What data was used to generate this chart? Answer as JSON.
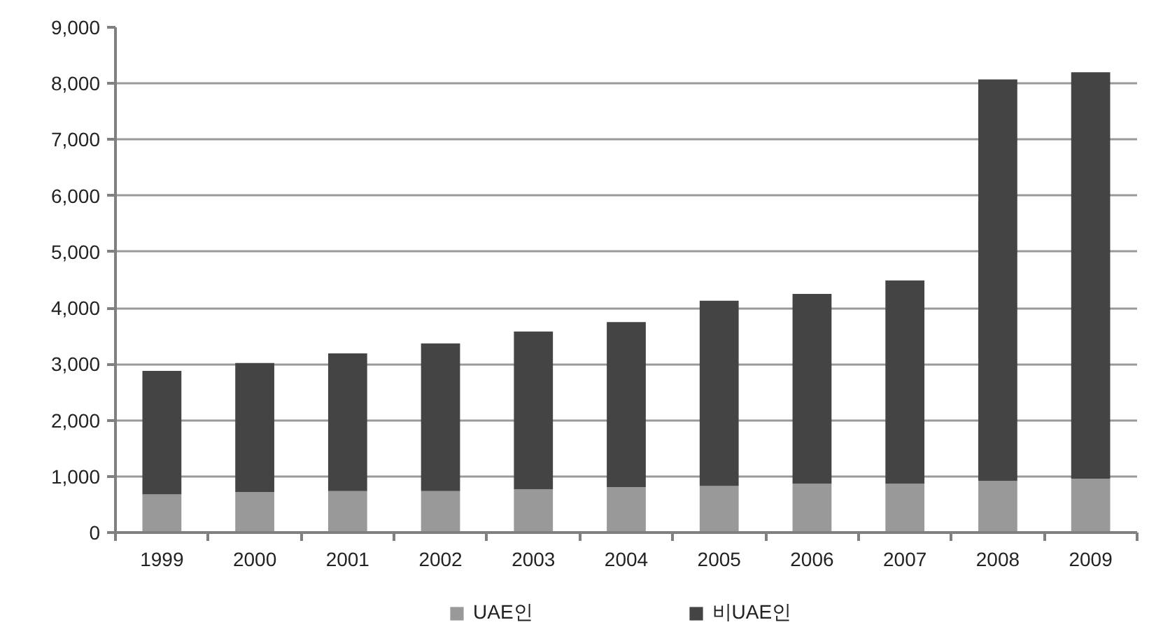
{
  "chart_data": {
    "type": "bar",
    "stacked": true,
    "categories": [
      "1999",
      "2000",
      "2001",
      "2002",
      "2003",
      "2004",
      "2005",
      "2006",
      "2007",
      "2008",
      "2009"
    ],
    "series": [
      {
        "name": "UAE인",
        "color": "#999999",
        "values": [
          680,
          720,
          740,
          740,
          770,
          810,
          830,
          870,
          870,
          920,
          960
        ]
      },
      {
        "name": "비UAE인",
        "color": "#444444",
        "values": [
          2200,
          2300,
          2450,
          2630,
          2810,
          2940,
          3300,
          3380,
          3620,
          7150,
          7240
        ]
      }
    ],
    "ylim": [
      0,
      9000
    ],
    "yticks": [
      0,
      {
        "value": 1000,
        "label": "1,000"
      },
      {
        "value": 2000,
        "label": "2,000"
      },
      {
        "value": 3000,
        "label": "3,000"
      },
      {
        "value": 4000,
        "label": "4,000"
      },
      {
        "value": 5000,
        "label": "5,000"
      },
      {
        "value": 6000,
        "label": "6,000"
      },
      {
        "value": 7000,
        "label": "7,000"
      },
      {
        "value": 8000,
        "label": "8,000"
      },
      {
        "value": 9000,
        "label": "9,000"
      }
    ],
    "grid": "y",
    "legend": "bottom"
  }
}
